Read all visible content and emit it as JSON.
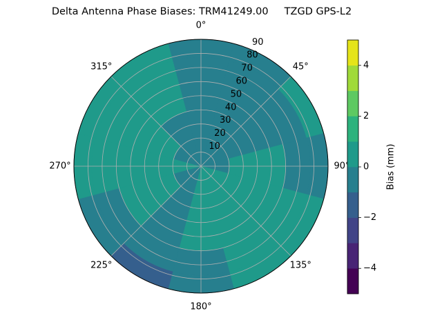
{
  "chart_data": {
    "type": "polar-contour",
    "title": "Delta Antenna Phase Biases: TRM41249.00     TZGD GPS-L2",
    "azimuth": [
      0,
      30,
      60,
      90,
      120,
      150,
      180,
      210,
      240,
      270,
      300,
      330
    ],
    "zenith": [
      10,
      30,
      50,
      70,
      85
    ],
    "values": [
      [
        -0.5,
        -0.5,
        -0.5,
        -0.5,
        -0.5
      ],
      [
        -0.5,
        -0.5,
        -0.5,
        -0.5,
        -0.5
      ],
      [
        -0.5,
        -0.5,
        -0.5,
        -0.5,
        0.5
      ],
      [
        -0.5,
        0.5,
        0.5,
        -0.5,
        -0.5
      ],
      [
        0.5,
        0.5,
        0.5,
        0.5,
        0.5
      ],
      [
        0.5,
        0.5,
        0.5,
        0.5,
        0.5
      ],
      [
        0.5,
        0.5,
        0.5,
        -0.5,
        -0.5
      ],
      [
        -0.5,
        -0.5,
        -0.5,
        -0.5,
        -1.5
      ],
      [
        -0.5,
        0.5,
        0.5,
        -0.5,
        -0.5
      ],
      [
        0.5,
        0.5,
        0.5,
        0.5,
        0.5
      ],
      [
        -0.5,
        0.5,
        0.5,
        0.5,
        0.5
      ],
      [
        -0.5,
        -0.5,
        0.5,
        0.5,
        0.5
      ]
    ],
    "rlim": [
      0,
      90
    ],
    "rticks": [
      10,
      20,
      30,
      40,
      50,
      60,
      70,
      80,
      90
    ],
    "thetaticks": [
      {
        "value": 0,
        "label": "0°"
      },
      {
        "value": 45,
        "label": "45°"
      },
      {
        "value": 90,
        "label": "90°"
      },
      {
        "value": 135,
        "label": "135°"
      },
      {
        "value": 180,
        "label": "180°"
      },
      {
        "value": 225,
        "label": "225°"
      },
      {
        "value": 270,
        "label": "270°"
      },
      {
        "value": 315,
        "label": "315°"
      }
    ],
    "levels": [
      -5,
      -4,
      -3,
      -2,
      -1,
      0,
      1,
      2,
      3,
      4,
      5
    ],
    "colors": [
      "#440154",
      "#482475",
      "#414487",
      "#355f8d",
      "#277f8e",
      "#1f9a8a",
      "#2db27d",
      "#5ec962",
      "#a0da39",
      "#e5e419"
    ],
    "colorbar_label": "Bias (mm)",
    "cticks": [
      {
        "value": -4,
        "label": "−4"
      },
      {
        "value": -2,
        "label": "−2"
      },
      0,
      2,
      4
    ],
    "grid": true
  }
}
